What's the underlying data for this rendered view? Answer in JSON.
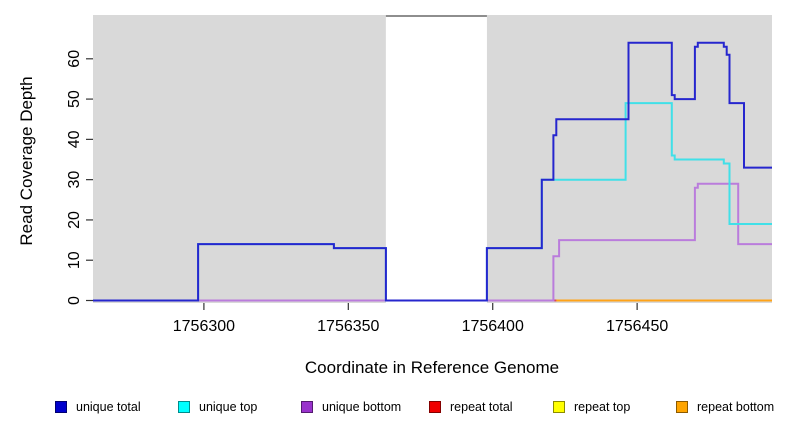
{
  "figure": {
    "xlabel": "Coordinate in Reference Genome",
    "ylabel": "Read Coverage Depth"
  },
  "legend": {
    "items": [
      {
        "label": "unique total",
        "color": "#0000CC"
      },
      {
        "label": "unique top",
        "color": "#00FFFF"
      },
      {
        "label": "unique bottom",
        "color": "#9932CC"
      },
      {
        "label": "repeat total",
        "color": "#EE0000"
      },
      {
        "label": "repeat top",
        "color": "#FFFF00"
      },
      {
        "label": "repeat bottom",
        "color": "#FFA500"
      }
    ]
  },
  "chart_data": {
    "type": "line",
    "subtype": "step-coverage",
    "title": "",
    "xlabel": "Coordinate in Reference Genome",
    "ylabel": "Read Coverage Depth",
    "xlim": [
      1756261.6,
      1756496.7
    ],
    "ylim": [
      0,
      71
    ],
    "xticks": [
      1756300,
      1756350,
      1756400,
      1756450
    ],
    "xtick_labels": [
      "1756300",
      "1756350",
      "1756400",
      "1756450"
    ],
    "yticks": [
      0,
      10,
      20,
      30,
      40,
      50,
      60
    ],
    "ytick_labels": [
      "0",
      "10",
      "20",
      "30",
      "40",
      "50",
      "60"
    ],
    "grid": false,
    "legend_position": "bottom",
    "panel_background": "#D9D9D9",
    "gap_region": {
      "from": 1756363,
      "to": 1756398,
      "fill": "#FFFFFF",
      "top_border": "#8E8E8E"
    },
    "series": [
      {
        "name": "repeat top",
        "color": "#FFFF00",
        "points": [
          [
            1756261.6,
            0
          ],
          [
            1756496.7,
            0
          ]
        ]
      },
      {
        "name": "repeat total",
        "color": "#D8485E",
        "points": [
          [
            1756261.6,
            0
          ],
          [
            1756496.7,
            0
          ]
        ]
      },
      {
        "name": "repeat bottom",
        "color": "#FFA318",
        "points": [
          [
            1756422,
            0
          ],
          [
            1756496.7,
            0
          ]
        ]
      },
      {
        "name": "unique bottom",
        "color": "#BA7CDC",
        "points": [
          [
            1756261.6,
            0
          ],
          [
            1756421,
            11
          ],
          [
            1756423,
            15
          ],
          [
            1756470,
            28
          ],
          [
            1756471,
            29
          ],
          [
            1756485,
            14
          ],
          [
            1756496.7,
            14
          ]
        ]
      },
      {
        "name": "unique top",
        "color": "#40E0E8",
        "points": [
          [
            1756261.6,
            0
          ],
          [
            1756298,
            14
          ],
          [
            1756345,
            13
          ],
          [
            1756363,
            0
          ],
          [
            1756398,
            13
          ],
          [
            1756417,
            30
          ],
          [
            1756446,
            49
          ],
          [
            1756462,
            36
          ],
          [
            1756463,
            35
          ],
          [
            1756480,
            34
          ],
          [
            1756482,
            19
          ],
          [
            1756496.7,
            19
          ]
        ]
      },
      {
        "name": "unique total",
        "color": "#2626CE",
        "points": [
          [
            1756261.6,
            0
          ],
          [
            1756298,
            14
          ],
          [
            1756345,
            13
          ],
          [
            1756363,
            0
          ],
          [
            1756398,
            13
          ],
          [
            1756417,
            30
          ],
          [
            1756421,
            41
          ],
          [
            1756422,
            45
          ],
          [
            1756447,
            64
          ],
          [
            1756462,
            51
          ],
          [
            1756463,
            50
          ],
          [
            1756470,
            63
          ],
          [
            1756471,
            64
          ],
          [
            1756480,
            63
          ],
          [
            1756481,
            61
          ],
          [
            1756482,
            49
          ],
          [
            1756487,
            33
          ],
          [
            1756496.7,
            33
          ]
        ]
      }
    ]
  }
}
